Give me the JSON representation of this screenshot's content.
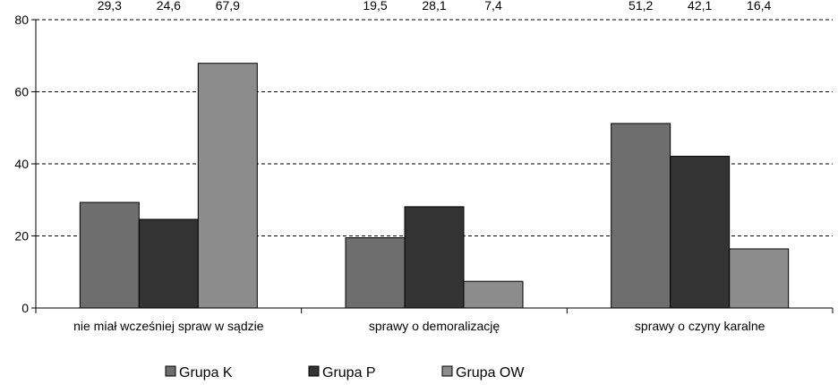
{
  "chart_data": {
    "type": "bar",
    "categories": [
      "nie miał wcześniej spraw w sądzie",
      "sprawy o demoralizację",
      "sprawy o czyny karalne"
    ],
    "series": [
      {
        "name": "Grupa K",
        "values": [
          29.3,
          19.5,
          51.2
        ],
        "labels": [
          "29,3",
          "19,5",
          "51,2"
        ],
        "color": "#6e6e6e"
      },
      {
        "name": "Grupa P",
        "values": [
          24.6,
          28.1,
          42.1
        ],
        "labels": [
          "24,6",
          "28,1",
          "42,1"
        ],
        "color": "#333333"
      },
      {
        "name": "Grupa OW",
        "values": [
          67.9,
          7.4,
          16.4
        ],
        "labels": [
          "67,9",
          "7,4",
          "16,4"
        ],
        "color": "#8c8c8c"
      }
    ],
    "yticks": [
      0,
      20,
      40,
      60,
      80
    ],
    "ylim": [
      0,
      80
    ],
    "grid": "dashed horizontal",
    "legend_position": "bottom"
  }
}
